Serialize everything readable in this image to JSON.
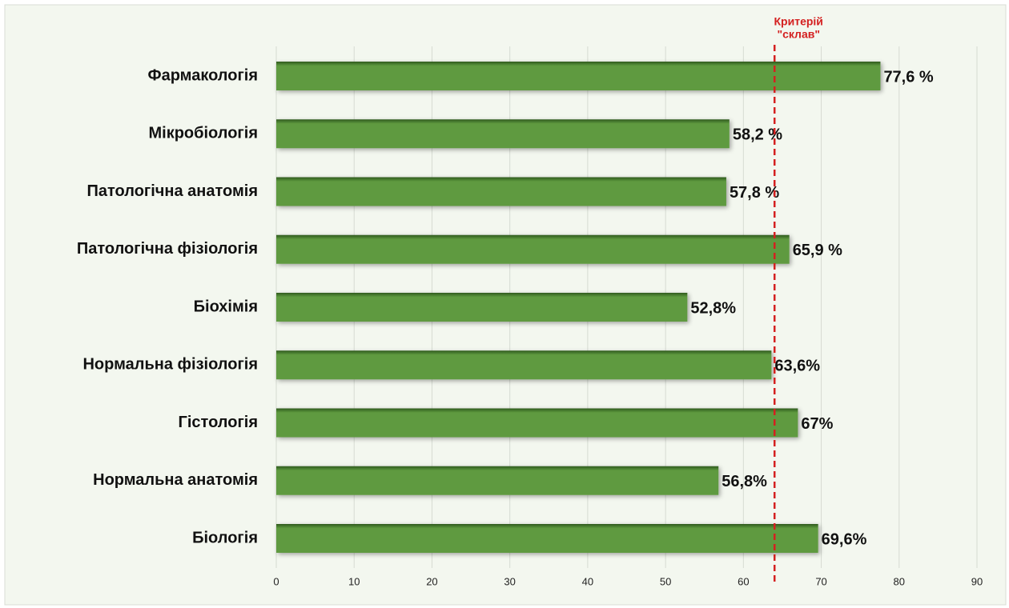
{
  "chart_data": {
    "type": "bar",
    "orientation": "horizontal",
    "categories": [
      "Фармакологія",
      "Мікробіологія",
      "Патологічна анатомія",
      "Патологічна фізіологія",
      "Біохімія",
      "Нормальна фізіологія",
      "Гістологія",
      "Нормальна анатомія",
      "Біологія"
    ],
    "values": [
      77.6,
      58.2,
      57.8,
      65.9,
      52.8,
      63.6,
      67,
      56.8,
      69.6
    ],
    "value_labels": [
      "77,6 %",
      "58,2 %",
      "57,8 %",
      "65,9 %",
      "52,8%",
      "63,6%",
      "67%",
      "56,8%",
      "69,6%"
    ],
    "color": "#5f9a3f",
    "xlim": [
      0,
      90
    ],
    "xticks": [
      0,
      10,
      20,
      30,
      40,
      50,
      60,
      70,
      80,
      90
    ],
    "grid": true,
    "reference_line": {
      "value": 64,
      "color": "#d42020",
      "label_lines": [
        "Критерій",
        "\"склав\""
      ]
    }
  }
}
